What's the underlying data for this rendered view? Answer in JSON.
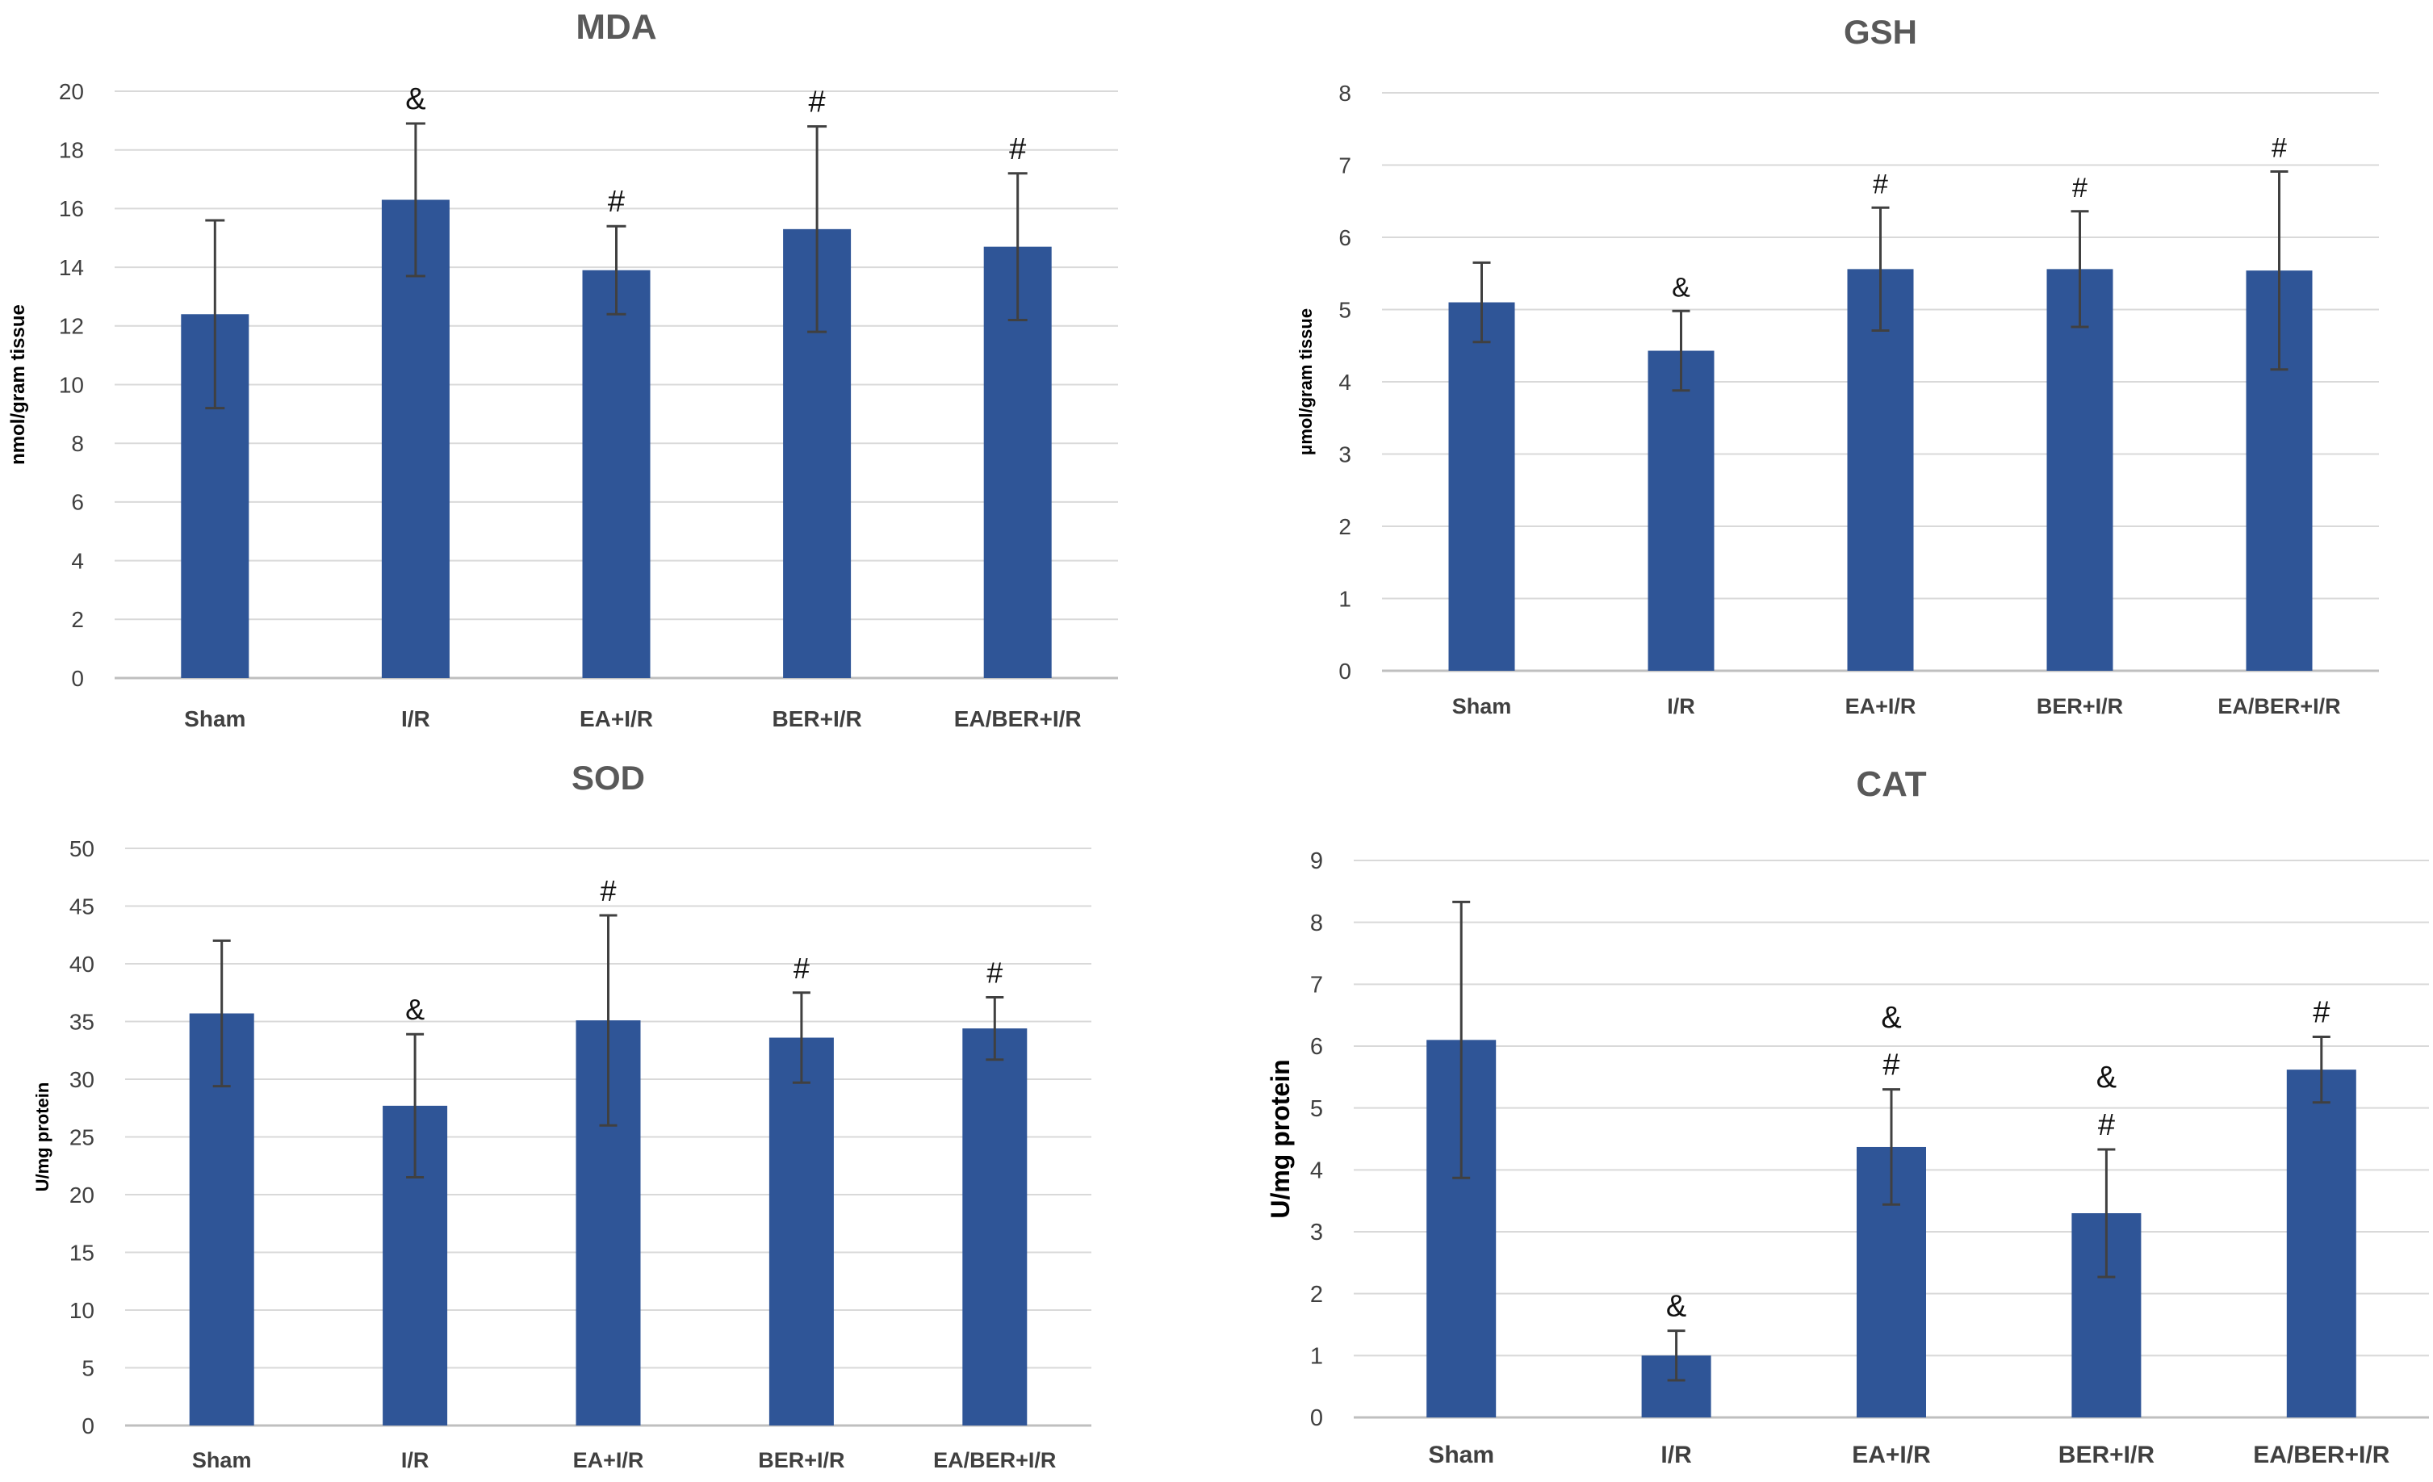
{
  "figure": {
    "colors": {
      "bar": "#2F5597",
      "grid": "#D9D9D9",
      "axis": "#BFBFBF",
      "error_bar": "#404040"
    }
  },
  "chart_data": [
    {
      "type": "bar",
      "title": "MDA",
      "xlabel": "",
      "ylabel": "nmol/gram tissue",
      "categories": [
        "Sham",
        "I/R",
        "EA+I/R",
        "BER+I/R",
        "EA/BER+I/R"
      ],
      "values": [
        12.4,
        16.3,
        13.9,
        15.3,
        14.7
      ],
      "errors": [
        3.2,
        2.6,
        1.5,
        3.5,
        2.5
      ],
      "annotations": [
        [],
        [
          "&"
        ],
        [
          "#"
        ],
        [
          "#"
        ],
        [
          "#"
        ]
      ],
      "ylim": [
        0,
        20
      ],
      "yticks": [
        0,
        2,
        4,
        6,
        8,
        10,
        12,
        14,
        16,
        18,
        20
      ],
      "grid": true,
      "legend": "none"
    },
    {
      "type": "bar",
      "title": "GSH",
      "xlabel": "",
      "ylabel": "μmol/gram tissue",
      "categories": [
        "Sham",
        "I/R",
        "EA+I/R",
        "BER+I/R",
        "EA/BER+I/R"
      ],
      "values": [
        5.1,
        4.43,
        5.56,
        5.56,
        5.54
      ],
      "errors": [
        0.55,
        0.55,
        0.85,
        0.8,
        1.37
      ],
      "annotations": [
        [],
        [
          "&"
        ],
        [
          "#"
        ],
        [
          "#"
        ],
        [
          "#"
        ]
      ],
      "ylim": [
        0,
        8
      ],
      "yticks": [
        0,
        1,
        2,
        3,
        4,
        5,
        6,
        7,
        8
      ],
      "grid": true,
      "legend": "none"
    },
    {
      "type": "bar",
      "title": "SOD",
      "xlabel": "",
      "ylabel": "U/mg protein",
      "categories": [
        "Sham",
        "I/R",
        "EA+I/R",
        "BER+I/R",
        "EA/BER+I/R"
      ],
      "values": [
        35.7,
        27.7,
        35.1,
        33.6,
        34.4
      ],
      "errors": [
        6.3,
        6.2,
        9.1,
        3.9,
        2.7
      ],
      "annotations": [
        [],
        [
          "&"
        ],
        [
          "#"
        ],
        [
          "#"
        ],
        [
          "#"
        ]
      ],
      "ylim": [
        0,
        50
      ],
      "yticks": [
        0,
        5,
        10,
        15,
        20,
        25,
        30,
        35,
        40,
        45,
        50
      ],
      "grid": true,
      "legend": "none"
    },
    {
      "type": "bar",
      "title": "CAT",
      "xlabel": "",
      "ylabel": "U/mg protein",
      "categories": [
        "Sham",
        "I/R",
        "EA+I/R",
        "BER+I/R",
        "EA/BER+I/R"
      ],
      "values": [
        6.1,
        1.0,
        4.37,
        3.3,
        5.62
      ],
      "errors": [
        2.23,
        0.4,
        0.93,
        1.03,
        0.53
      ],
      "annotations": [
        [],
        [
          "&"
        ],
        [
          "#",
          "&"
        ],
        [
          "#",
          "&"
        ],
        [
          "#"
        ]
      ],
      "ylim": [
        0,
        9
      ],
      "yticks": [
        0,
        1,
        2,
        3,
        4,
        5,
        6,
        7,
        8,
        9
      ],
      "grid": true,
      "legend": "none"
    }
  ]
}
